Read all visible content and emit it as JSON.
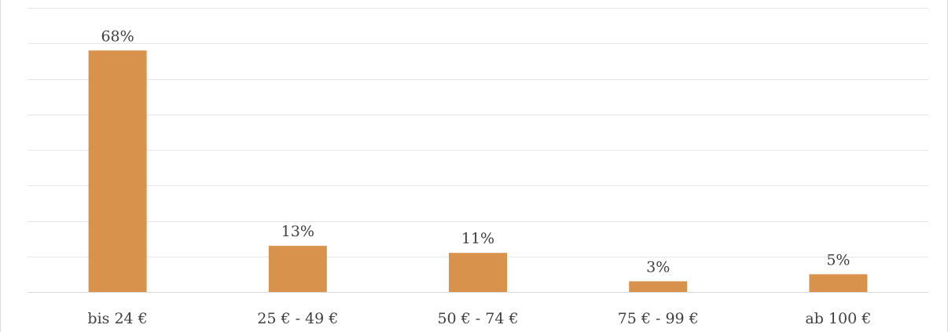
{
  "chart_data": {
    "type": "bar",
    "categories": [
      "bis 24 €",
      "25 € - 49 €",
      "50 € - 74 €",
      "75 € - 99 €",
      "ab 100 €"
    ],
    "values": [
      68,
      13,
      11,
      3,
      5
    ],
    "data_labels": [
      "68%",
      "13%",
      "11%",
      "3%",
      "5%"
    ],
    "ylim": [
      0,
      80
    ],
    "y_gridline_step": 10,
    "grid": true,
    "legend": "none",
    "title": "",
    "xlabel": "",
    "ylabel": ""
  },
  "colors": {
    "bar": "#d9924c",
    "grid": "#e6e6e6",
    "text": "#404040"
  }
}
